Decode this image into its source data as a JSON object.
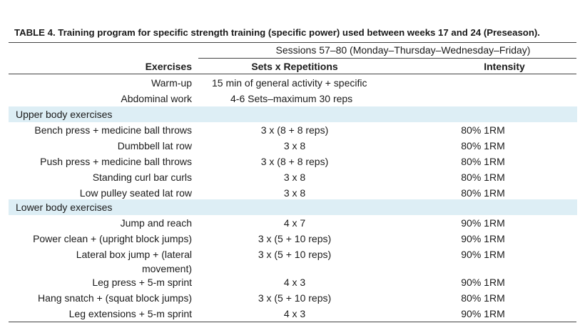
{
  "caption": "TABLE 4. Training program for specific strength training (specific power) used between weeks 17 and 24 (Preseason).",
  "sessions_header": "Sessions 57–80 (Monday–Thursday–Wednesday–Friday)",
  "columns": {
    "exercises": "Exercises",
    "sets": "Sets x Repetitions",
    "intensity": "Intensity"
  },
  "warmup": [
    {
      "exercise": "Warm-up",
      "detail": "15 min of general activity + specific"
    },
    {
      "exercise": "Abdominal work",
      "detail": "4-6 Sets–maximum 30 reps"
    }
  ],
  "sections": [
    {
      "title": "Upper body exercises",
      "rows": [
        {
          "exercise": "Bench press + medicine ball throws",
          "sets": "3 x (8 + 8 reps)",
          "intensity": "80% 1RM"
        },
        {
          "exercise": "Dumbbell lat row",
          "sets": "3 x 8",
          "intensity": "80% 1RM"
        },
        {
          "exercise": "Push press + medicine ball throws",
          "sets": "3 x (8 + 8 reps)",
          "intensity": "80% 1RM"
        },
        {
          "exercise": "Standing curl bar curls",
          "sets": "3 x 8",
          "intensity": "80% 1RM"
        },
        {
          "exercise": "Low pulley seated lat row",
          "sets": "3 x 8",
          "intensity": "80% 1RM"
        }
      ]
    },
    {
      "title": "Lower body exercises",
      "rows": [
        {
          "exercise": "Jump and reach",
          "sets": "4 x 7",
          "intensity": "90% 1RM"
        },
        {
          "exercise": "Power clean + (upright block jumps)",
          "sets": "3 x (5 + 10 reps)",
          "intensity": "90% 1RM"
        },
        {
          "exercise": "Lateral box jump + (lateral",
          "exercise_line2": "movement)",
          "sets": "3 x (5 + 10 reps)",
          "intensity": "90% 1RM"
        },
        {
          "exercise": "Leg press + 5-m sprint",
          "sets": "4 x 3",
          "intensity": "90% 1RM"
        },
        {
          "exercise": "Hang snatch + (squat block jumps)",
          "sets": "3 x (5 + 10 reps)",
          "intensity": "80% 1RM"
        },
        {
          "exercise": "Leg extensions + 5-m sprint",
          "sets": "4 x 3",
          "intensity": "90% 1RM"
        }
      ]
    }
  ]
}
